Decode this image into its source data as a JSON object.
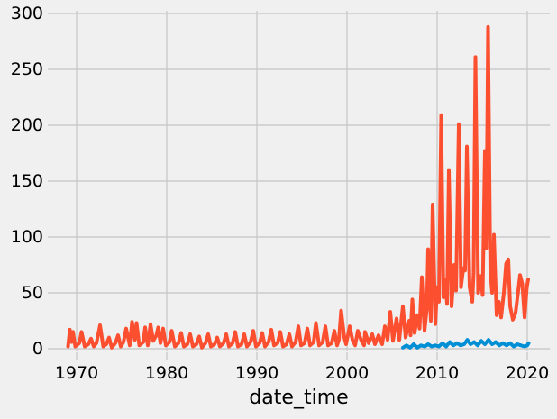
{
  "chart_data": {
    "type": "line",
    "title": "",
    "xlabel": "date_time",
    "ylabel": "",
    "x_ticks": [
      1970,
      1980,
      1990,
      2000,
      2010,
      2020
    ],
    "y_ticks": [
      0,
      50,
      100,
      150,
      200,
      250,
      300
    ],
    "xlim": [
      1966.8,
      2022.5
    ],
    "ylim": [
      -2.4,
      302.4
    ],
    "grid": true,
    "legend": "none",
    "style": {
      "background_color": "#F0F0F0",
      "grid_color": "#CBCBCB",
      "text_color": "#000000"
    },
    "series": [
      {
        "name": "red-series",
        "color": "#FC4F30",
        "linewidth": 4,
        "points": [
          [
            1969.05,
            2
          ],
          [
            1969.25,
            17
          ],
          [
            1969.45,
            6
          ],
          [
            1969.6,
            15
          ],
          [
            1969.85,
            2
          ],
          [
            1970.3,
            5
          ],
          [
            1970.55,
            15
          ],
          [
            1970.9,
            2
          ],
          [
            1971.3,
            4
          ],
          [
            1971.6,
            9
          ],
          [
            1971.9,
            2
          ],
          [
            1972.2,
            5
          ],
          [
            1972.6,
            21
          ],
          [
            1972.95,
            2
          ],
          [
            1973.3,
            4
          ],
          [
            1973.6,
            10
          ],
          [
            1973.9,
            1
          ],
          [
            1974.3,
            5
          ],
          [
            1974.6,
            12
          ],
          [
            1974.9,
            2
          ],
          [
            1975.2,
            6
          ],
          [
            1975.5,
            18
          ],
          [
            1975.9,
            3
          ],
          [
            1976.15,
            24
          ],
          [
            1976.45,
            8
          ],
          [
            1976.65,
            23
          ],
          [
            1976.95,
            3
          ],
          [
            1977.4,
            6
          ],
          [
            1977.6,
            19
          ],
          [
            1977.9,
            3
          ],
          [
            1978.2,
            22
          ],
          [
            1978.5,
            7
          ],
          [
            1978.85,
            12
          ],
          [
            1979.05,
            19
          ],
          [
            1979.3,
            5
          ],
          [
            1979.6,
            18
          ],
          [
            1979.9,
            3
          ],
          [
            1980.3,
            6
          ],
          [
            1980.55,
            16
          ],
          [
            1980.9,
            2
          ],
          [
            1981.3,
            5
          ],
          [
            1981.6,
            14
          ],
          [
            1981.9,
            2
          ],
          [
            1982.3,
            4
          ],
          [
            1982.6,
            13
          ],
          [
            1982.9,
            2
          ],
          [
            1983.3,
            4
          ],
          [
            1983.6,
            11
          ],
          [
            1983.9,
            1
          ],
          [
            1984.3,
            5
          ],
          [
            1984.6,
            13
          ],
          [
            1984.9,
            2
          ],
          [
            1985.3,
            4
          ],
          [
            1985.6,
            10
          ],
          [
            1985.9,
            2
          ],
          [
            1986.3,
            5
          ],
          [
            1986.6,
            13
          ],
          [
            1986.9,
            2
          ],
          [
            1987.3,
            5
          ],
          [
            1987.6,
            15
          ],
          [
            1987.9,
            2
          ],
          [
            1988.3,
            4
          ],
          [
            1988.6,
            13
          ],
          [
            1988.9,
            2
          ],
          [
            1989.3,
            6
          ],
          [
            1989.6,
            16
          ],
          [
            1989.9,
            2
          ],
          [
            1990.3,
            5
          ],
          [
            1990.6,
            14
          ],
          [
            1990.9,
            2
          ],
          [
            1991.3,
            6
          ],
          [
            1991.6,
            17
          ],
          [
            1991.9,
            3
          ],
          [
            1992.3,
            5
          ],
          [
            1992.6,
            15
          ],
          [
            1992.9,
            2
          ],
          [
            1993.3,
            4
          ],
          [
            1993.6,
            13
          ],
          [
            1993.9,
            2
          ],
          [
            1994.3,
            6
          ],
          [
            1994.6,
            20
          ],
          [
            1994.9,
            3
          ],
          [
            1995.3,
            5
          ],
          [
            1995.6,
            18
          ],
          [
            1995.9,
            3
          ],
          [
            1996.3,
            6
          ],
          [
            1996.55,
            23
          ],
          [
            1996.9,
            3
          ],
          [
            1997.3,
            6
          ],
          [
            1997.6,
            20
          ],
          [
            1997.9,
            3
          ],
          [
            1998.3,
            5
          ],
          [
            1998.6,
            16
          ],
          [
            1998.9,
            3
          ],
          [
            1999.1,
            8
          ],
          [
            1999.35,
            34
          ],
          [
            1999.7,
            10
          ],
          [
            1999.9,
            4
          ],
          [
            2000.3,
            20
          ],
          [
            2000.6,
            8
          ],
          [
            2000.9,
            3
          ],
          [
            2001.2,
            16
          ],
          [
            2001.6,
            7
          ],
          [
            2001.9,
            3
          ],
          [
            2002.0,
            15
          ],
          [
            2002.4,
            5
          ],
          [
            2002.8,
            13
          ],
          [
            2003.1,
            4
          ],
          [
            2003.5,
            12
          ],
          [
            2003.9,
            4
          ],
          [
            2004.2,
            20
          ],
          [
            2004.5,
            8
          ],
          [
            2004.8,
            33
          ],
          [
            2005.1,
            7
          ],
          [
            2005.5,
            27
          ],
          [
            2005.8,
            8
          ],
          [
            2006.2,
            38
          ],
          [
            2006.5,
            10
          ],
          [
            2006.9,
            25
          ],
          [
            2007.05,
            12
          ],
          [
            2007.25,
            44
          ],
          [
            2007.5,
            14
          ],
          [
            2007.8,
            30
          ],
          [
            2008.05,
            18
          ],
          [
            2008.3,
            64
          ],
          [
            2008.6,
            16
          ],
          [
            2008.85,
            35
          ],
          [
            2009.0,
            89
          ],
          [
            2009.3,
            25
          ],
          [
            2009.5,
            129
          ],
          [
            2009.8,
            22
          ],
          [
            2010.0,
            55
          ],
          [
            2010.2,
            42
          ],
          [
            2010.45,
            209
          ],
          [
            2010.7,
            46
          ],
          [
            2010.9,
            62
          ],
          [
            2011.1,
            40
          ],
          [
            2011.3,
            160
          ],
          [
            2011.6,
            38
          ],
          [
            2011.9,
            75
          ],
          [
            2012.1,
            52
          ],
          [
            2012.4,
            201
          ],
          [
            2012.65,
            55
          ],
          [
            2012.9,
            72
          ],
          [
            2013.1,
            70
          ],
          [
            2013.3,
            181
          ],
          [
            2013.6,
            55
          ],
          [
            2013.9,
            42
          ],
          [
            2014.05,
            68
          ],
          [
            2014.25,
            261
          ],
          [
            2014.55,
            50
          ],
          [
            2014.8,
            65
          ],
          [
            2015.05,
            48
          ],
          [
            2015.3,
            177
          ],
          [
            2015.45,
            90
          ],
          [
            2015.65,
            288
          ],
          [
            2015.9,
            70
          ],
          [
            2016.1,
            50
          ],
          [
            2016.3,
            102
          ],
          [
            2016.6,
            30
          ],
          [
            2016.85,
            42
          ],
          [
            2017.1,
            28
          ],
          [
            2017.4,
            50
          ],
          [
            2017.65,
            76
          ],
          [
            2017.9,
            80
          ],
          [
            2018.1,
            38
          ],
          [
            2018.4,
            26
          ],
          [
            2018.7,
            32
          ],
          [
            2019.0,
            52
          ],
          [
            2019.2,
            66
          ],
          [
            2019.45,
            58
          ],
          [
            2019.7,
            28
          ],
          [
            2019.95,
            55
          ],
          [
            2020.1,
            62
          ]
        ]
      },
      {
        "name": "blue-series",
        "color": "#008FD5",
        "linewidth": 4,
        "points": [
          [
            2006.2,
            1
          ],
          [
            2006.6,
            3
          ],
          [
            2007.0,
            1
          ],
          [
            2007.4,
            4
          ],
          [
            2007.8,
            1
          ],
          [
            2008.2,
            3
          ],
          [
            2008.6,
            2
          ],
          [
            2009.0,
            4
          ],
          [
            2009.4,
            2
          ],
          [
            2009.8,
            3
          ],
          [
            2010.2,
            2
          ],
          [
            2010.6,
            5
          ],
          [
            2011.0,
            2
          ],
          [
            2011.4,
            6
          ],
          [
            2011.8,
            3
          ],
          [
            2012.2,
            5
          ],
          [
            2012.6,
            3
          ],
          [
            2013.0,
            4
          ],
          [
            2013.35,
            8
          ],
          [
            2013.7,
            4
          ],
          [
            2014.1,
            6
          ],
          [
            2014.5,
            3
          ],
          [
            2014.9,
            7
          ],
          [
            2015.3,
            4
          ],
          [
            2015.7,
            8
          ],
          [
            2016.1,
            4
          ],
          [
            2016.5,
            6
          ],
          [
            2016.9,
            3
          ],
          [
            2017.3,
            5
          ],
          [
            2017.7,
            3
          ],
          [
            2018.1,
            5
          ],
          [
            2018.5,
            2
          ],
          [
            2018.9,
            4
          ],
          [
            2019.3,
            3
          ],
          [
            2019.7,
            2
          ],
          [
            2020.0,
            3
          ],
          [
            2020.15,
            5
          ]
        ]
      }
    ]
  }
}
